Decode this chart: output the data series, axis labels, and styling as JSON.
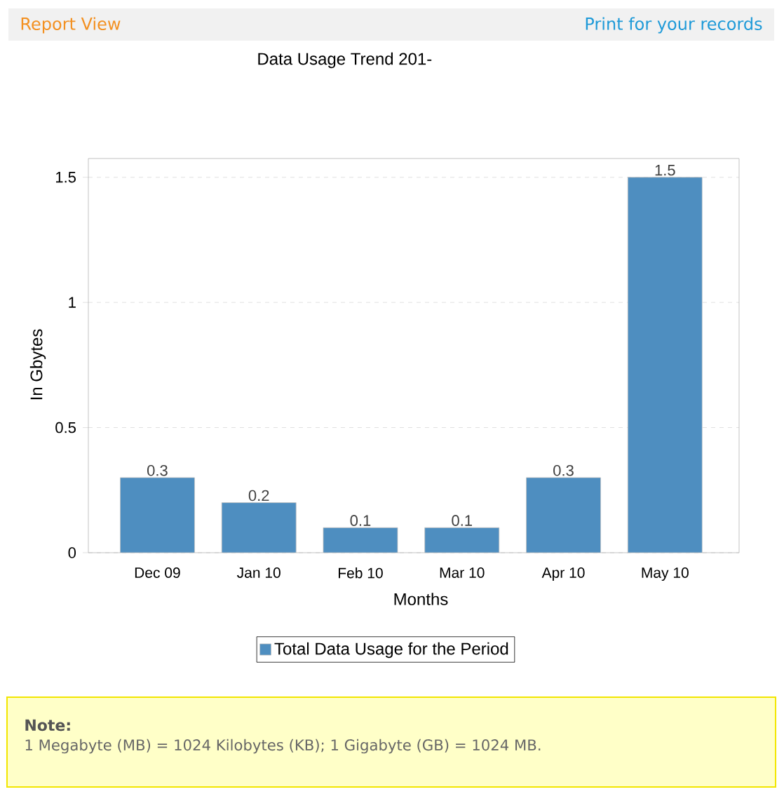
{
  "chart_data": {
    "type": "bar",
    "title": "Data Usage Trend 201-",
    "xlabel": "Months",
    "ylabel": "In Gbytes",
    "categories": [
      "Dec 09",
      "Jan 10",
      "Feb 10",
      "Mar 10",
      "Apr 10",
      "May 10"
    ],
    "series": [
      {
        "name": "Total Data Usage for the Period",
        "color": "#4e8ec0",
        "values": [
          0.3,
          0.2,
          0.1,
          0.1,
          0.3,
          1.5
        ]
      }
    ],
    "ylim": [
      0,
      1.575
    ],
    "yticks": [
      0,
      0.5,
      1,
      1.5
    ],
    "grid": "y",
    "legend": "bottom",
    "data_labels": true,
    "annotations": [
      "Report View",
      "Print for your records",
      "Note:",
      "1 Megabyte (MB) = 1024 Kilobytes (KB); 1 Gigabyte (GB) = 1024 MB."
    ]
  }
}
